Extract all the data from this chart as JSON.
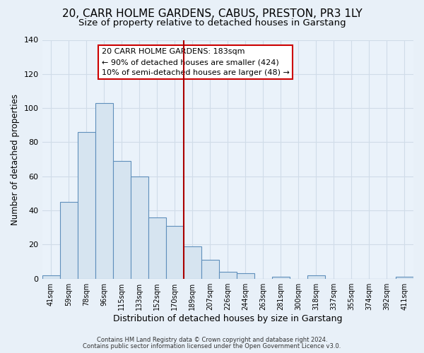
{
  "title": "20, CARR HOLME GARDENS, CABUS, PRESTON, PR3 1LY",
  "subtitle": "Size of property relative to detached houses in Garstang",
  "xlabel": "Distribution of detached houses by size in Garstang",
  "ylabel": "Number of detached properties",
  "bar_color": "#d6e4f0",
  "bar_edge_color": "#5f8fbb",
  "categories": [
    "41sqm",
    "59sqm",
    "78sqm",
    "96sqm",
    "115sqm",
    "133sqm",
    "152sqm",
    "170sqm",
    "189sqm",
    "207sqm",
    "226sqm",
    "244sqm",
    "263sqm",
    "281sqm",
    "300sqm",
    "318sqm",
    "337sqm",
    "355sqm",
    "374sqm",
    "392sqm",
    "411sqm"
  ],
  "values": [
    2,
    45,
    86,
    103,
    69,
    60,
    36,
    31,
    19,
    11,
    4,
    3,
    0,
    1,
    0,
    2,
    0,
    0,
    0,
    0,
    1
  ],
  "ylim": [
    0,
    140
  ],
  "yticks": [
    0,
    20,
    40,
    60,
    80,
    100,
    120,
    140
  ],
  "vline_color": "#aa0000",
  "annotation_title": "20 CARR HOLME GARDENS: 183sqm",
  "annotation_line1": "← 90% of detached houses are smaller (424)",
  "annotation_line2": "10% of semi-detached houses are larger (48) →",
  "annotation_box_color": "#ffffff",
  "annotation_box_edge_color": "#cc0000",
  "footnote1": "Contains HM Land Registry data © Crown copyright and database right 2024.",
  "footnote2": "Contains public sector information licensed under the Open Government Licence v3.0.",
  "fig_bg_color": "#e8f0f8",
  "plot_bg_color": "#eaf2fa",
  "grid_color": "#d0dce8",
  "title_fontsize": 11,
  "subtitle_fontsize": 9.5,
  "xlabel_fontsize": 9,
  "ylabel_fontsize": 8.5
}
